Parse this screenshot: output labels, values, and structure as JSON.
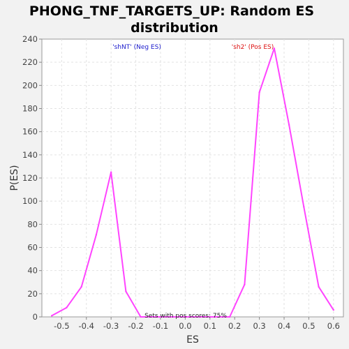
{
  "chart_data": {
    "type": "line",
    "title_line1": "PHONG_TNF_TARGETS_UP: Random ES",
    "title_line2": "distribution",
    "xlabel": "ES",
    "ylabel": "P(ES)",
    "xlim": [
      -0.58,
      0.64
    ],
    "ylim": [
      0,
      240
    ],
    "x_ticks": [
      -0.5,
      -0.4,
      -0.3,
      -0.2,
      -0.1,
      0.0,
      0.1,
      0.2,
      0.3,
      0.4,
      0.5,
      0.6
    ],
    "x_tick_labels": [
      "-0.5",
      "-0.4",
      "-0.3",
      "-0.2",
      "-0.1",
      "0.0",
      "0.1",
      "0.2",
      "0.3",
      "0.4",
      "0.5",
      "0.6"
    ],
    "y_ticks": [
      0,
      20,
      40,
      60,
      80,
      100,
      120,
      140,
      160,
      180,
      200,
      220,
      240
    ],
    "grid": true,
    "line_color": "#ff44ff",
    "series": [
      {
        "x": [
          -0.54,
          -0.48,
          -0.42,
          -0.36,
          -0.3,
          -0.24,
          -0.18,
          -0.12,
          -0.06,
          0.0,
          0.06,
          0.12,
          0.18,
          0.24,
          0.3,
          0.36,
          0.42,
          0.48,
          0.54,
          0.6
        ],
        "y": [
          1,
          8,
          26,
          71,
          125,
          22,
          0,
          0,
          0,
          0,
          0,
          0,
          0,
          28,
          194,
          232,
          166,
          95,
          26,
          6
        ]
      }
    ],
    "annotations": {
      "neg": {
        "text": "'shNT' (Neg ES)",
        "color": "#1a1acc"
      },
      "pos": {
        "text": "'sh2' (Pos ES)",
        "color": "#dd1111"
      }
    },
    "footnote": "Sets with pos scores: 75%"
  }
}
